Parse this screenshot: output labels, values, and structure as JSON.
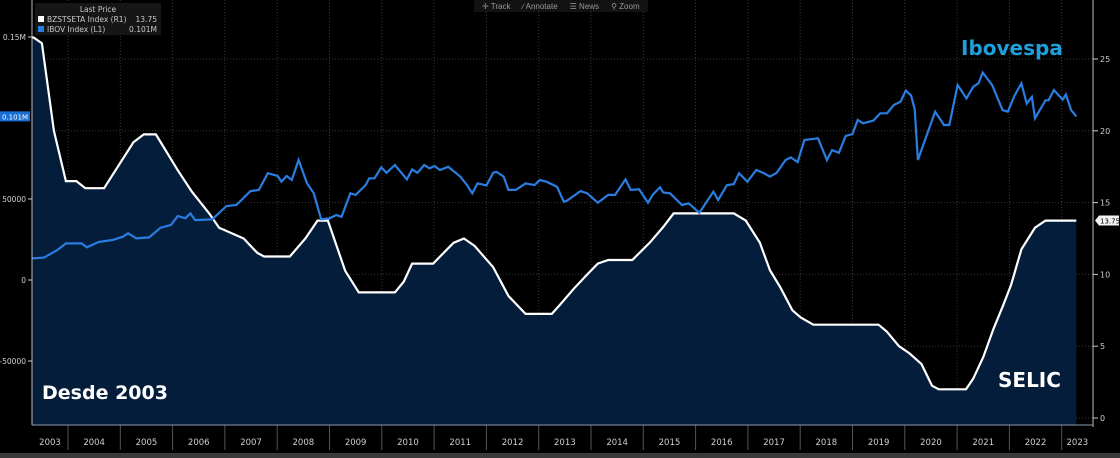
{
  "toolbar": {
    "track": "Track",
    "annotate": "Annotate",
    "news": "News",
    "zoom": "Zoom"
  },
  "legend": {
    "title": "Last Price",
    "items": [
      {
        "name": "BZSTSETA Index  (R1)",
        "value": "13.75",
        "color": "#ffffff"
      },
      {
        "name": "IBOV Index  (L1)",
        "value": "0.101M",
        "color": "#2a7de1"
      }
    ]
  },
  "annotations": {
    "since": "Desde 2003",
    "ibovespa": "Ibovespa",
    "selic": "SELIC"
  },
  "colors": {
    "selic_line": "#ffffff",
    "selic_fill": "#041d3a",
    "ibov_line": "#2a7de1",
    "ibov_label": "#1ea0dc",
    "grid": "#3a3a3a"
  },
  "chart_data": {
    "type": "line",
    "title": "",
    "x_range": [
      2003.27,
      2023.4
    ],
    "x_ticks": [
      "2003",
      "2004",
      "2005",
      "2006",
      "2007",
      "2008",
      "2009",
      "2010",
      "2011",
      "2012",
      "2013",
      "2014",
      "2015",
      "2016",
      "2017",
      "2018",
      "2019",
      "2020",
      "2021",
      "2022",
      "2023"
    ],
    "y_left": {
      "label": "IBOV Index",
      "range": [
        -85000,
        165000
      ],
      "tick_labels": [
        "0.15M",
        "50000",
        "0",
        "-50000"
      ],
      "tick_values": [
        150000,
        50000,
        0,
        -50000
      ],
      "last_value_tag": "0.101M"
    },
    "y_right": {
      "label": "BZSTSETA Index",
      "range": [
        -0.5,
        29
      ],
      "tick_labels": [
        "25",
        "20",
        "15",
        "10",
        "5",
        "0"
      ],
      "tick_values": [
        25,
        20,
        15,
        10,
        5,
        0
      ],
      "last_value_tag": "13.75"
    },
    "grid": true,
    "legend_position": "top-left",
    "series": [
      {
        "name": "BZSTSETA Index (SELIC)",
        "axis": "right",
        "style": "area",
        "points": [
          [
            2003.34,
            26.5
          ],
          [
            2003.5,
            26.1
          ],
          [
            2003.73,
            20
          ],
          [
            2003.96,
            16.5
          ],
          [
            2004.16,
            16.5
          ],
          [
            2004.33,
            16
          ],
          [
            2004.69,
            16
          ],
          [
            2005.25,
            19.2
          ],
          [
            2005.45,
            19.75
          ],
          [
            2005.68,
            19.75
          ],
          [
            2006.1,
            17.25
          ],
          [
            2006.37,
            15.75
          ],
          [
            2006.7,
            14.25
          ],
          [
            2006.89,
            13.25
          ],
          [
            2007.36,
            12.5
          ],
          [
            2007.62,
            11.5
          ],
          [
            2007.75,
            11.25
          ],
          [
            2008.24,
            11.25
          ],
          [
            2008.54,
            12.5
          ],
          [
            2008.77,
            13.75
          ],
          [
            2008.97,
            13.75
          ],
          [
            2009.3,
            10.25
          ],
          [
            2009.56,
            8.75
          ],
          [
            2010.25,
            8.75
          ],
          [
            2010.42,
            9.5
          ],
          [
            2010.58,
            10.75
          ],
          [
            2010.98,
            10.75
          ],
          [
            2011.37,
            12.2
          ],
          [
            2011.57,
            12.5
          ],
          [
            2011.77,
            12
          ],
          [
            2012.13,
            10.5
          ],
          [
            2012.42,
            8.5
          ],
          [
            2012.75,
            7.25
          ],
          [
            2013.25,
            7.25
          ],
          [
            2013.41,
            7.9
          ],
          [
            2013.67,
            9
          ],
          [
            2013.93,
            10
          ],
          [
            2014.13,
            10.75
          ],
          [
            2014.33,
            11
          ],
          [
            2014.79,
            11
          ],
          [
            2015.12,
            12.2
          ],
          [
            2015.38,
            13.3
          ],
          [
            2015.58,
            14.25
          ],
          [
            2016.73,
            14.25
          ],
          [
            2016.96,
            13.75
          ],
          [
            2017.23,
            12.2
          ],
          [
            2017.42,
            10.3
          ],
          [
            2017.62,
            9.1
          ],
          [
            2017.85,
            7.5
          ],
          [
            2018.01,
            7
          ],
          [
            2018.25,
            6.5
          ],
          [
            2019.5,
            6.5
          ],
          [
            2019.66,
            6
          ],
          [
            2019.89,
            5
          ],
          [
            2020.09,
            4.5
          ],
          [
            2020.32,
            3.75
          ],
          [
            2020.52,
            2.25
          ],
          [
            2020.65,
            2
          ],
          [
            2021.17,
            2
          ],
          [
            2021.31,
            2.75
          ],
          [
            2021.5,
            4.25
          ],
          [
            2021.7,
            6.25
          ],
          [
            2021.87,
            7.75
          ],
          [
            2022.03,
            9.25
          ],
          [
            2022.23,
            11.75
          ],
          [
            2022.49,
            13.25
          ],
          [
            2022.69,
            13.75
          ],
          [
            2023.28,
            13.75
          ]
        ]
      },
      {
        "name": "IBOV Index",
        "axis": "left",
        "unit": "thousands",
        "style": "line",
        "points": [
          [
            2003.34,
            13.4
          ],
          [
            2003.54,
            13.8
          ],
          [
            2003.8,
            18.5
          ],
          [
            2003.96,
            22.6
          ],
          [
            2004.26,
            22.6
          ],
          [
            2004.36,
            20.2
          ],
          [
            2004.59,
            23.5
          ],
          [
            2004.85,
            24.7
          ],
          [
            2005.05,
            26.7
          ],
          [
            2005.15,
            28.8
          ],
          [
            2005.31,
            25.7
          ],
          [
            2005.55,
            26.3
          ],
          [
            2005.77,
            32.3
          ],
          [
            2005.97,
            34
          ],
          [
            2006.1,
            39.5
          ],
          [
            2006.24,
            38.1
          ],
          [
            2006.34,
            41.1
          ],
          [
            2006.43,
            37
          ],
          [
            2006.76,
            37.5
          ],
          [
            2007.03,
            45.7
          ],
          [
            2007.22,
            46.3
          ],
          [
            2007.49,
            54.9
          ],
          [
            2007.65,
            55.6
          ],
          [
            2007.82,
            65.9
          ],
          [
            2008.01,
            64.2
          ],
          [
            2008.08,
            60.7
          ],
          [
            2008.18,
            64.2
          ],
          [
            2008.28,
            61.7
          ],
          [
            2008.41,
            74.1
          ],
          [
            2008.57,
            59.7
          ],
          [
            2008.7,
            53.5
          ],
          [
            2008.84,
            37.5
          ],
          [
            2009.0,
            38
          ],
          [
            2009.13,
            40.1
          ],
          [
            2009.23,
            39
          ],
          [
            2009.4,
            53.5
          ],
          [
            2009.5,
            52.5
          ],
          [
            2009.69,
            58.6
          ],
          [
            2009.76,
            62.8
          ],
          [
            2009.86,
            62.8
          ],
          [
            2009.99,
            69.5
          ],
          [
            2010.09,
            66.2
          ],
          [
            2010.25,
            71
          ],
          [
            2010.48,
            62.1
          ],
          [
            2010.58,
            68.3
          ],
          [
            2010.68,
            66.2
          ],
          [
            2010.81,
            71
          ],
          [
            2010.91,
            68.9
          ],
          [
            2011.01,
            70.4
          ],
          [
            2011.11,
            67.9
          ],
          [
            2011.27,
            69.9
          ],
          [
            2011.5,
            63.8
          ],
          [
            2011.63,
            58.6
          ],
          [
            2011.73,
            53.5
          ],
          [
            2011.83,
            59.6
          ],
          [
            2012.0,
            58.4
          ],
          [
            2012.13,
            66.2
          ],
          [
            2012.19,
            66.8
          ],
          [
            2012.33,
            63.8
          ],
          [
            2012.42,
            55.6
          ],
          [
            2012.56,
            55.6
          ],
          [
            2012.75,
            59.6
          ],
          [
            2012.92,
            58.6
          ],
          [
            2013.02,
            61.7
          ],
          [
            2013.15,
            60.7
          ],
          [
            2013.35,
            57.6
          ],
          [
            2013.48,
            48.3
          ],
          [
            2013.54,
            48.9
          ],
          [
            2013.8,
            54.9
          ],
          [
            2013.93,
            53.5
          ],
          [
            2014.13,
            47.7
          ],
          [
            2014.33,
            52.5
          ],
          [
            2014.46,
            52.5
          ],
          [
            2014.66,
            62.1
          ],
          [
            2014.76,
            55.6
          ],
          [
            2014.92,
            56
          ],
          [
            2015.09,
            47.7
          ],
          [
            2015.18,
            52.5
          ],
          [
            2015.32,
            57.2
          ],
          [
            2015.38,
            54
          ],
          [
            2015.51,
            53.5
          ],
          [
            2015.74,
            46.3
          ],
          [
            2015.87,
            47.3
          ],
          [
            2016.07,
            41.5
          ],
          [
            2016.34,
            54.5
          ],
          [
            2016.43,
            49.4
          ],
          [
            2016.6,
            58.6
          ],
          [
            2016.73,
            59.2
          ],
          [
            2016.83,
            65.9
          ],
          [
            2016.99,
            60.7
          ],
          [
            2017.16,
            67.9
          ],
          [
            2017.29,
            66.2
          ],
          [
            2017.42,
            63.8
          ],
          [
            2017.55,
            66.2
          ],
          [
            2017.72,
            74.1
          ],
          [
            2017.82,
            75.7
          ],
          [
            2017.95,
            72.8
          ],
          [
            2018.08,
            86.4
          ],
          [
            2018.34,
            87.5
          ],
          [
            2018.51,
            74.1
          ],
          [
            2018.61,
            80.2
          ],
          [
            2018.74,
            78.5
          ],
          [
            2018.87,
            88.9
          ],
          [
            2019.0,
            90.1
          ],
          [
            2019.1,
            98.8
          ],
          [
            2019.2,
            96.7
          ],
          [
            2019.4,
            98.4
          ],
          [
            2019.53,
            102.9
          ],
          [
            2019.66,
            102.9
          ],
          [
            2019.79,
            108
          ],
          [
            2019.92,
            110.1
          ],
          [
            2020.02,
            116.9
          ],
          [
            2020.12,
            113.9
          ],
          [
            2020.19,
            105.4
          ],
          [
            2020.25,
            74.1
          ],
          [
            2020.58,
            103.9
          ],
          [
            2020.75,
            95.7
          ],
          [
            2020.85,
            95.7
          ],
          [
            2021.01,
            120.4
          ],
          [
            2021.18,
            112.1
          ],
          [
            2021.31,
            119.3
          ],
          [
            2021.41,
            121.4
          ],
          [
            2021.49,
            128
          ],
          [
            2021.67,
            120.4
          ],
          [
            2021.87,
            104.9
          ],
          [
            2021.97,
            103.9
          ],
          [
            2022.1,
            113.9
          ],
          [
            2022.23,
            121.4
          ],
          [
            2022.33,
            108.9
          ],
          [
            2022.43,
            113
          ],
          [
            2022.49,
            99.8
          ],
          [
            2022.69,
            110.9
          ],
          [
            2022.75,
            110.9
          ],
          [
            2022.85,
            117.3
          ],
          [
            2023.02,
            111.3
          ],
          [
            2023.08,
            114.5
          ],
          [
            2023.18,
            104.9
          ],
          [
            2023.28,
            101
          ]
        ]
      }
    ]
  }
}
